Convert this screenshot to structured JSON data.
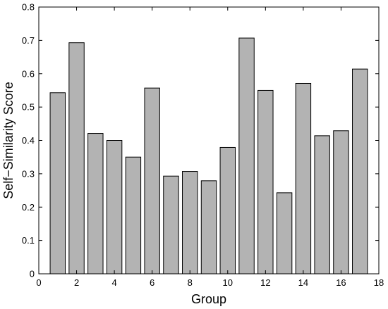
{
  "chart_data": {
    "type": "bar",
    "title": "",
    "xlabel": "Group",
    "ylabel": "Self−Similarity Score",
    "x": [
      1,
      2,
      3,
      4,
      5,
      6,
      7,
      8,
      9,
      10,
      11,
      12,
      13,
      14,
      15,
      16,
      17
    ],
    "values": [
      0.543,
      0.693,
      0.421,
      0.4,
      0.35,
      0.557,
      0.293,
      0.307,
      0.279,
      0.379,
      0.707,
      0.55,
      0.243,
      0.571,
      0.414,
      0.429,
      0.614
    ],
    "xlim": [
      0,
      18
    ],
    "ylim": [
      0,
      0.8
    ],
    "xticks": [
      "0",
      "2",
      "4",
      "6",
      "8",
      "10",
      "12",
      "14",
      "16",
      "18"
    ],
    "yticks": [
      "0",
      "0.1",
      "0.2",
      "0.3",
      "0.4",
      "0.5",
      "0.6",
      "0.7",
      "0.8"
    ],
    "grid": false,
    "bar_color": "#b3b3b3",
    "edge_color": "#000000"
  }
}
